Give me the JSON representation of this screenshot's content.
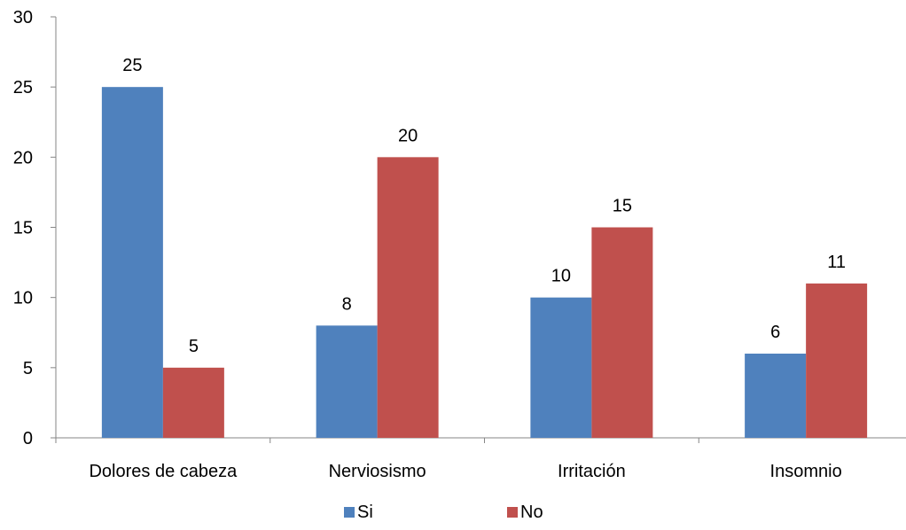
{
  "chart_data": {
    "type": "bar",
    "categories": [
      "Dolores de cabeza",
      "Nerviosismo",
      "Irritación",
      "Insomnio"
    ],
    "series": [
      {
        "name": "Si",
        "values": [
          25,
          8,
          10,
          6
        ],
        "color": "#4F81BD"
      },
      {
        "name": "No",
        "values": [
          5,
          20,
          15,
          11
        ],
        "color": "#C0504D"
      }
    ],
    "yticks": [
      0,
      5,
      10,
      15,
      20,
      25,
      30
    ],
    "ylim": [
      0,
      30
    ],
    "grid": false,
    "legend_position": "bottom",
    "data_labels": true
  }
}
